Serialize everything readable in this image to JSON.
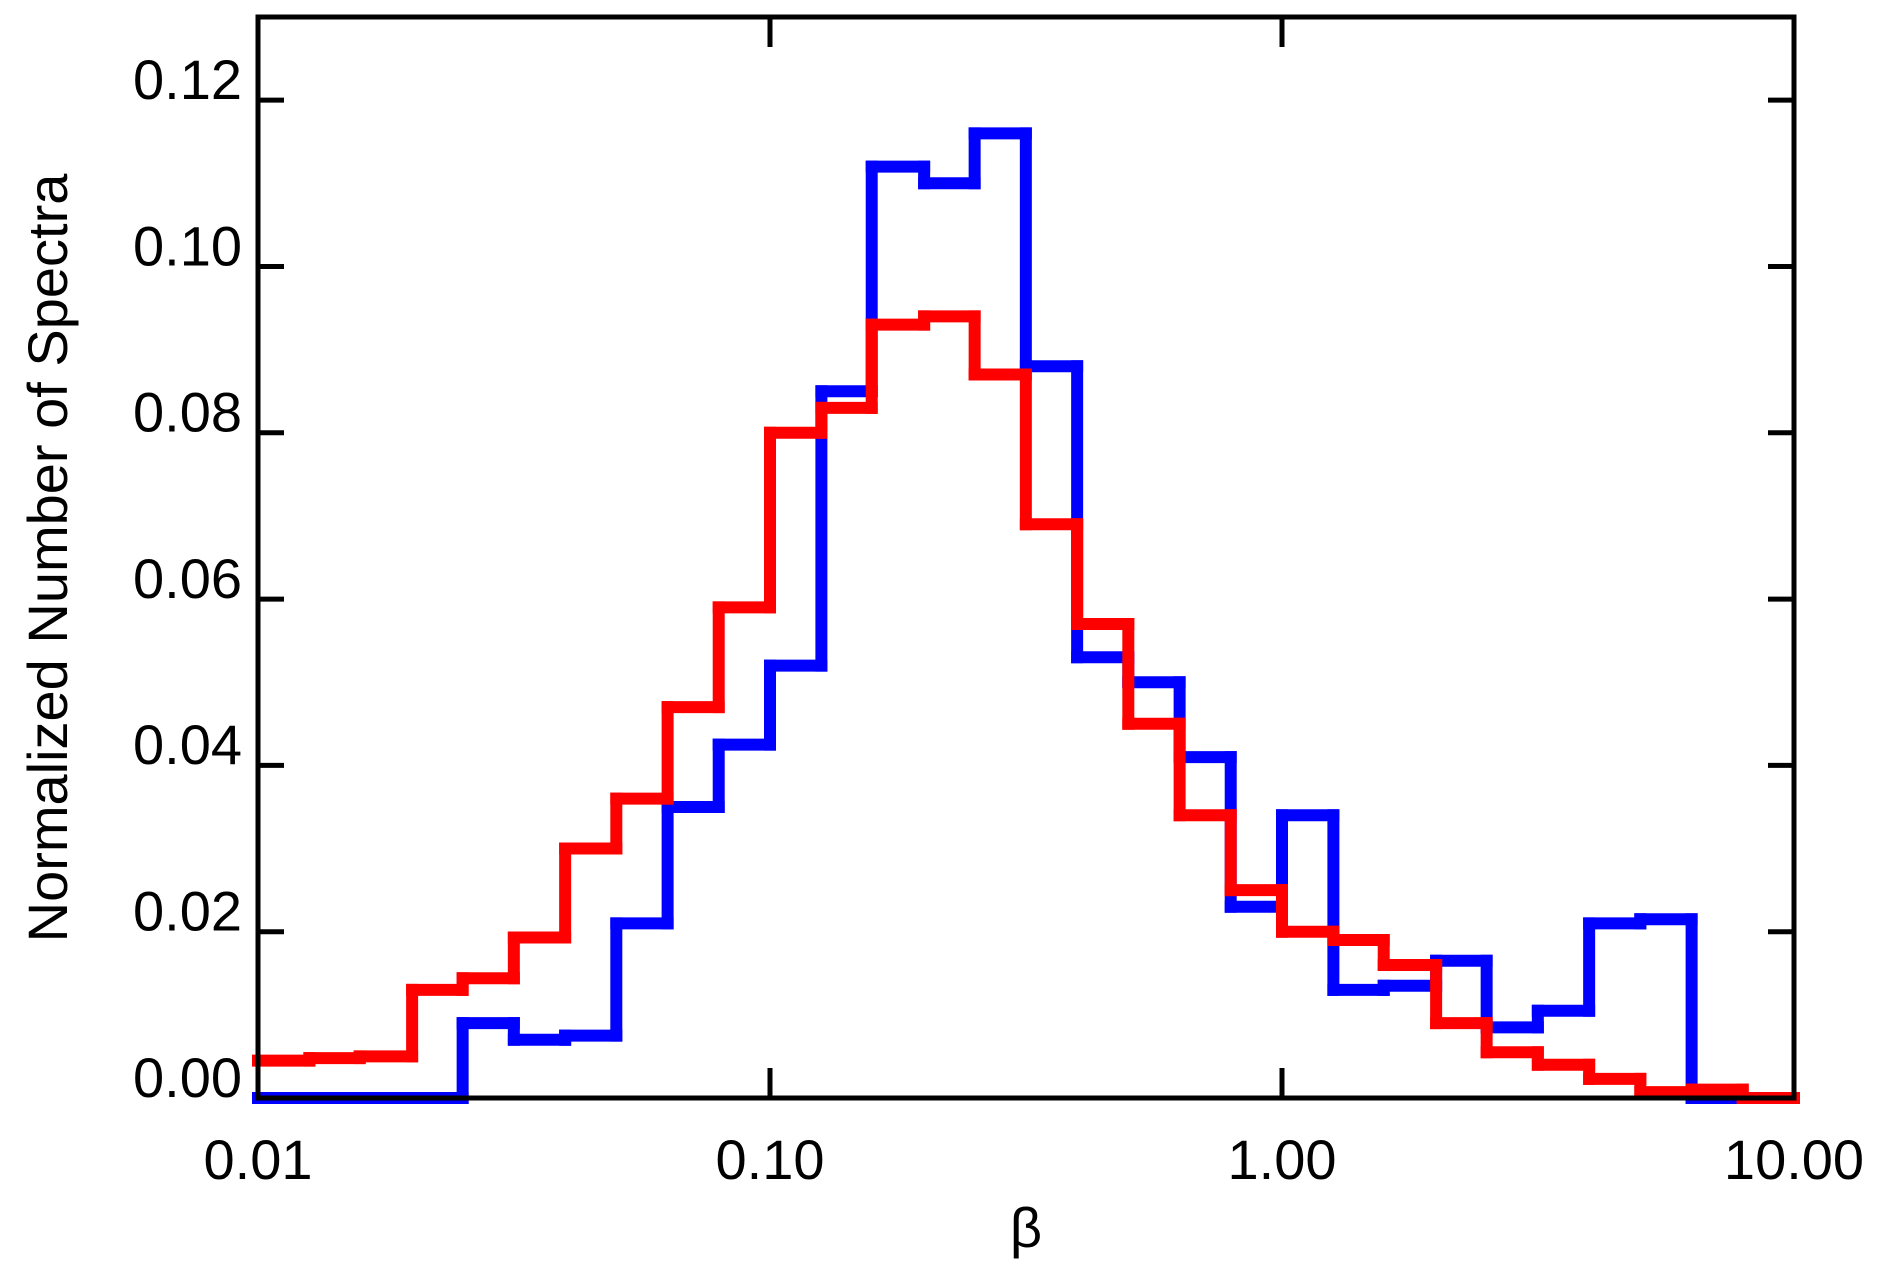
{
  "chart_data": {
    "type": "histogram",
    "xlabel": "β",
    "ylabel": "Normalized Number of Spectra",
    "xscale": "log",
    "bins": [
      0.01,
      0.0126,
      0.0158,
      0.02,
      0.0251,
      0.0316,
      0.0398,
      0.0501,
      0.0631,
      0.0794,
      0.1,
      0.126,
      0.158,
      0.2,
      0.251,
      0.316,
      0.398,
      0.501,
      0.631,
      0.794,
      1,
      1.26,
      1.58,
      2,
      2.51,
      3.16,
      3.98,
      5.01,
      6.31,
      7.94,
      10
    ],
    "series": [
      {
        "color": "#0000ff",
        "values": [
          0,
          0,
          0,
          0,
          0.009,
          0.007,
          0.0075,
          0.021,
          0.035,
          0.0425,
          0.052,
          0.085,
          0.112,
          0.11,
          0.116,
          0.088,
          0.053,
          0.05,
          0.041,
          0.023,
          0.034,
          0.013,
          0.0135,
          0.0165,
          0.0085,
          0.0105,
          0.021,
          0.0215,
          0,
          0
        ]
      },
      {
        "color": "#ff0000",
        "values": [
          0.0045,
          0.0048,
          0.005,
          0.013,
          0.0144,
          0.0193,
          0.03,
          0.036,
          0.047,
          0.059,
          0.08,
          0.083,
          0.093,
          0.094,
          0.087,
          0.069,
          0.057,
          0.045,
          0.034,
          0.025,
          0.02,
          0.019,
          0.016,
          0.009,
          0.0055,
          0.004,
          0.0023,
          0.0007,
          0.001,
          0
        ]
      }
    ],
    "xlim": [
      0.01,
      10
    ],
    "xticks": [
      0.01,
      {
        "value": 0.1,
        "label": "0.10"
      },
      {
        "value": 1,
        "label": "1.00"
      },
      {
        "value": 10,
        "label": "10.00"
      }
    ],
    "ylim": [
      0,
      0.13
    ],
    "yticks": [
      {
        "value": 0,
        "label": "0.00"
      },
      {
        "value": 0.02,
        "label": "0.02"
      },
      {
        "value": 0.04,
        "label": "0.04"
      },
      {
        "value": 0.06,
        "label": "0.06"
      },
      {
        "value": 0.08,
        "label": "0.08"
      },
      {
        "value": 0.1,
        "label": "0.10"
      },
      {
        "value": 0.12,
        "label": "0.12"
      }
    ]
  }
}
